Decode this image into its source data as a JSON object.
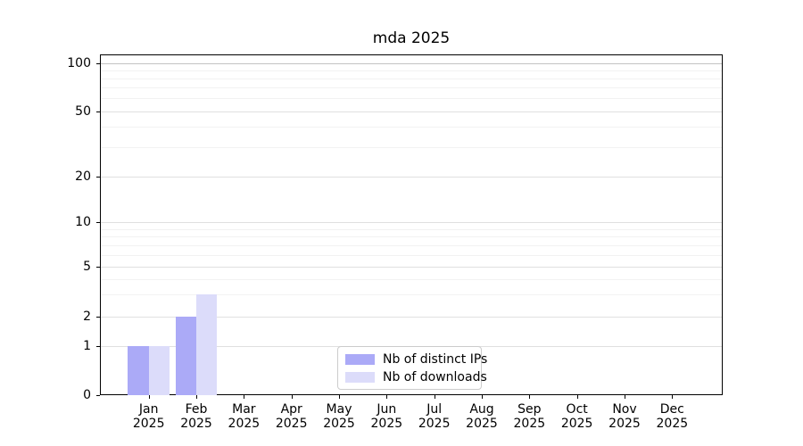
{
  "chart_data": {
    "type": "bar",
    "title": "mda 2025",
    "categories": [
      {
        "month": "Jan",
        "year": "2025"
      },
      {
        "month": "Feb",
        "year": "2025"
      },
      {
        "month": "Mar",
        "year": "2025"
      },
      {
        "month": "Apr",
        "year": "2025"
      },
      {
        "month": "May",
        "year": "2025"
      },
      {
        "month": "Jun",
        "year": "2025"
      },
      {
        "month": "Jul",
        "year": "2025"
      },
      {
        "month": "Aug",
        "year": "2025"
      },
      {
        "month": "Sep",
        "year": "2025"
      },
      {
        "month": "Oct",
        "year": "2025"
      },
      {
        "month": "Nov",
        "year": "2025"
      },
      {
        "month": "Dec",
        "year": "2025"
      }
    ],
    "series": [
      {
        "name": "Nb of distinct IPs",
        "color": "#abaaf7",
        "values": [
          1,
          2,
          0,
          0,
          0,
          0,
          0,
          0,
          0,
          0,
          0,
          0
        ]
      },
      {
        "name": "Nb of downloads",
        "color": "#dcdcfa",
        "values": [
          1,
          3,
          0,
          0,
          0,
          0,
          0,
          0,
          0,
          0,
          0,
          0
        ]
      }
    ],
    "y_axis": {
      "scale": "symlog",
      "tick_labels": [
        "0",
        "1",
        "2",
        "5",
        "10",
        "20",
        "50",
        "100"
      ],
      "major_ticks": [
        0,
        1,
        2,
        5,
        10,
        20,
        50,
        100
      ],
      "minor_ticks": [
        3,
        4,
        6,
        7,
        8,
        9,
        30,
        40,
        60,
        70,
        80,
        90
      ]
    },
    "legend": {
      "position": "lower center"
    },
    "colors": {
      "grid_major": "#e0e0e0",
      "grid_minor": "#f2f2f2",
      "grid_top": "#c3c3c3",
      "spine": "#000000",
      "background": "#ffffff"
    }
  }
}
